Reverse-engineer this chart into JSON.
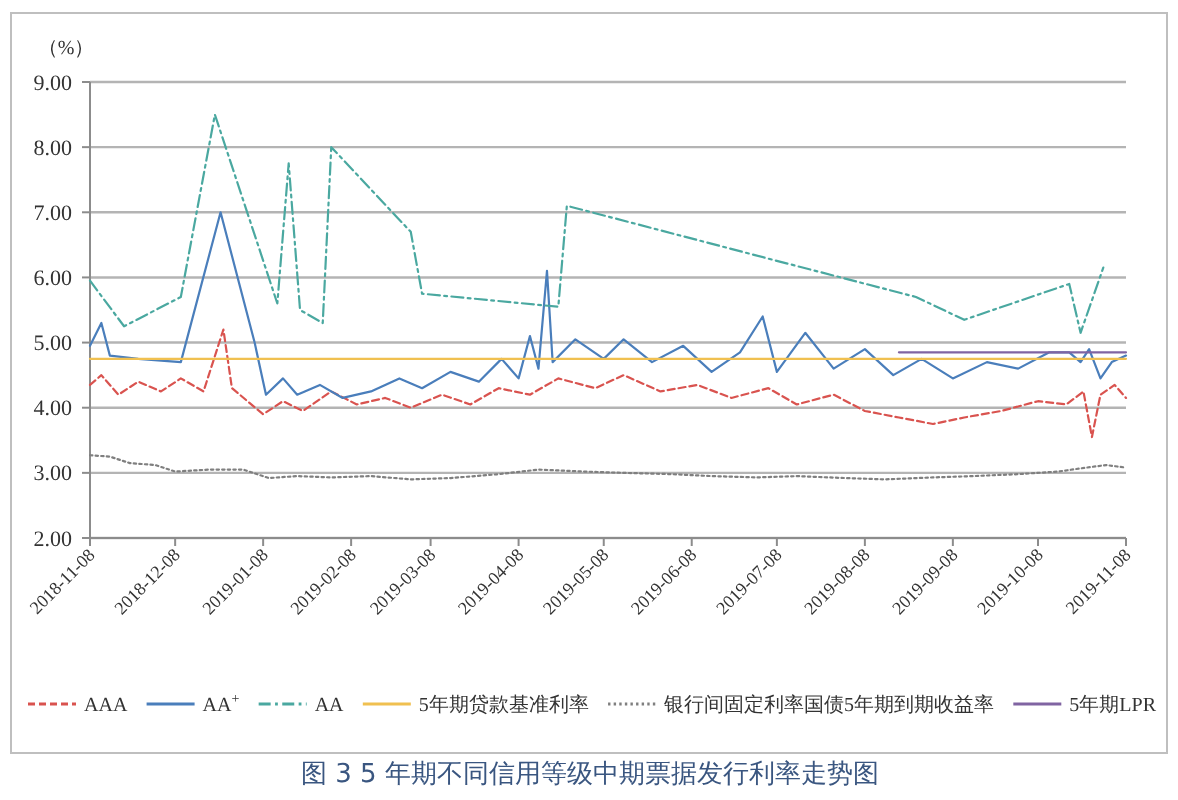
{
  "chart_data": {
    "type": "line",
    "ylabel": "（%）",
    "annotations": [
      "图 3 5 年期不同信用等级中期票据发行利率走势图"
    ],
    "xlim": [
      "2018-11-08",
      "2019-11-08"
    ],
    "xticks": [
      "2018-11-08",
      "2018-12-08",
      "2019-01-08",
      "2019-02-08",
      "2019-03-08",
      "2019-04-08",
      "2019-05-08",
      "2019-06-08",
      "2019-07-08",
      "2019-08-08",
      "2019-09-08",
      "2019-10-08",
      "2019-11-08"
    ],
    "ylim": [
      2,
      9
    ],
    "yticks": [
      {
        "value": 2,
        "label": "2.00"
      },
      {
        "value": 3,
        "label": "3.00"
      },
      {
        "value": 4,
        "label": "4.00"
      },
      {
        "value": 5,
        "label": "5.00"
      },
      {
        "value": 6,
        "label": "6.00"
      },
      {
        "value": 7,
        "label": "7.00"
      },
      {
        "value": 8,
        "label": "8.00"
      },
      {
        "value": 9,
        "label": "9.00"
      }
    ],
    "grid": "y",
    "legend": "bottom",
    "series": [
      {
        "name": "AAA",
        "color": "#d9534f",
        "line_style": "dashed",
        "x": [
          "2018-11-08",
          "2018-11-12",
          "2018-11-18",
          "2018-11-25",
          "2018-12-03",
          "2018-12-10",
          "2018-12-18",
          "2018-12-25",
          "2018-12-28",
          "2019-01-08",
          "2019-01-15",
          "2019-01-22",
          "2019-02-01",
          "2019-02-10",
          "2019-02-20",
          "2019-03-01",
          "2019-03-12",
          "2019-03-22",
          "2019-04-01",
          "2019-04-12",
          "2019-04-22",
          "2019-05-05",
          "2019-05-15",
          "2019-05-28",
          "2019-06-10",
          "2019-06-22",
          "2019-07-05",
          "2019-07-15",
          "2019-07-28",
          "2019-08-08",
          "2019-08-20",
          "2019-09-01",
          "2019-09-12",
          "2019-09-25",
          "2019-10-08",
          "2019-10-18",
          "2019-10-24",
          "2019-10-27",
          "2019-10-30",
          "2019-11-04",
          "2019-11-08"
        ],
        "values": [
          4.35,
          4.5,
          4.2,
          4.4,
          4.25,
          4.45,
          4.25,
          5.2,
          4.3,
          3.9,
          4.1,
          3.95,
          4.25,
          4.05,
          4.15,
          4.0,
          4.2,
          4.05,
          4.3,
          4.2,
          4.45,
          4.3,
          4.5,
          4.25,
          4.35,
          4.15,
          4.3,
          4.05,
          4.2,
          3.95,
          3.85,
          3.75,
          3.85,
          3.95,
          4.1,
          4.05,
          4.25,
          3.55,
          4.2,
          4.35,
          4.15
        ]
      },
      {
        "name": "AA$^{+}$",
        "color": "#4a7ebb",
        "line_style": "solid",
        "x": [
          "2018-11-08",
          "2018-11-12",
          "2018-11-15",
          "2018-11-25",
          "2018-12-10",
          "2018-12-24",
          "2019-01-05",
          "2019-01-09",
          "2019-01-15",
          "2019-01-20",
          "2019-01-28",
          "2019-02-05",
          "2019-02-15",
          "2019-02-25",
          "2019-03-05",
          "2019-03-15",
          "2019-03-25",
          "2019-04-02",
          "2019-04-08",
          "2019-04-12",
          "2019-04-15",
          "2019-04-18",
          "2019-04-20",
          "2019-04-28",
          "2019-05-08",
          "2019-05-15",
          "2019-05-25",
          "2019-06-05",
          "2019-06-15",
          "2019-06-25",
          "2019-07-03",
          "2019-07-08",
          "2019-07-18",
          "2019-07-28",
          "2019-08-08",
          "2019-08-18",
          "2019-08-28",
          "2019-09-08",
          "2019-09-20",
          "2019-10-01",
          "2019-10-12",
          "2019-10-19",
          "2019-10-23",
          "2019-10-26",
          "2019-10-30",
          "2019-11-03",
          "2019-11-08"
        ],
        "values": [
          4.95,
          5.3,
          4.8,
          4.75,
          4.7,
          7.0,
          5.0,
          4.2,
          4.45,
          4.2,
          4.35,
          4.15,
          4.25,
          4.45,
          4.3,
          4.55,
          4.4,
          4.75,
          4.45,
          5.1,
          4.6,
          6.1,
          4.7,
          5.05,
          4.75,
          5.05,
          4.7,
          4.95,
          4.55,
          4.85,
          5.4,
          4.55,
          5.15,
          4.6,
          4.9,
          4.5,
          4.75,
          4.45,
          4.7,
          4.6,
          4.85,
          4.85,
          4.7,
          4.9,
          4.45,
          4.7,
          4.8
        ]
      },
      {
        "name": "AA",
        "color": "#4aa8a0",
        "line_style": "dashdot",
        "x": [
          "2018-11-08",
          "2018-11-20",
          "2018-12-10",
          "2018-12-22",
          "2019-01-13",
          "2019-01-17",
          "2019-01-21",
          "2019-01-29",
          "2019-02-01",
          "2019-03-01",
          "2019-03-05",
          "2019-04-22",
          "2019-04-25",
          "2019-07-04",
          "2019-08-26",
          "2019-09-12",
          "2019-10-19",
          "2019-10-23",
          "2019-10-31"
        ],
        "values": [
          5.95,
          5.25,
          5.7,
          8.5,
          5.6,
          7.75,
          5.5,
          5.3,
          8.0,
          6.7,
          5.75,
          5.55,
          7.1,
          6.3,
          5.7,
          5.35,
          5.9,
          5.15,
          6.15
        ]
      },
      {
        "name": "5年期贷款基准利率",
        "color": "#f0c050",
        "line_style": "solid",
        "x": [
          "2018-11-08",
          "2019-11-08"
        ],
        "values": [
          4.75,
          4.75
        ]
      },
      {
        "name": "银行间固定利率国债5年期到期收益率",
        "color": "#7f7f7f",
        "line_style": "dotted",
        "x": [
          "2018-11-08",
          "2018-11-15",
          "2018-11-22",
          "2018-12-01",
          "2018-12-08",
          "2018-12-20",
          "2019-01-01",
          "2019-01-10",
          "2019-01-20",
          "2019-02-01",
          "2019-02-15",
          "2019-03-01",
          "2019-03-15",
          "2019-04-01",
          "2019-04-15",
          "2019-05-01",
          "2019-05-15",
          "2019-06-01",
          "2019-06-15",
          "2019-07-01",
          "2019-07-15",
          "2019-08-01",
          "2019-08-15",
          "2019-09-01",
          "2019-09-15",
          "2019-10-01",
          "2019-10-15",
          "2019-10-25",
          "2019-11-01",
          "2019-11-08"
        ],
        "values": [
          3.27,
          3.25,
          3.15,
          3.12,
          3.02,
          3.05,
          3.05,
          2.92,
          2.95,
          2.93,
          2.95,
          2.9,
          2.92,
          2.98,
          3.05,
          3.02,
          3.0,
          2.98,
          2.95,
          2.93,
          2.95,
          2.92,
          2.9,
          2.93,
          2.95,
          2.98,
          3.02,
          3.08,
          3.12,
          3.08
        ]
      },
      {
        "name": "5年期LPR",
        "color": "#8064a2",
        "line_style": "solid",
        "x": [
          "2019-08-20",
          "2019-11-08"
        ],
        "values": [
          4.85,
          4.85
        ]
      }
    ]
  }
}
